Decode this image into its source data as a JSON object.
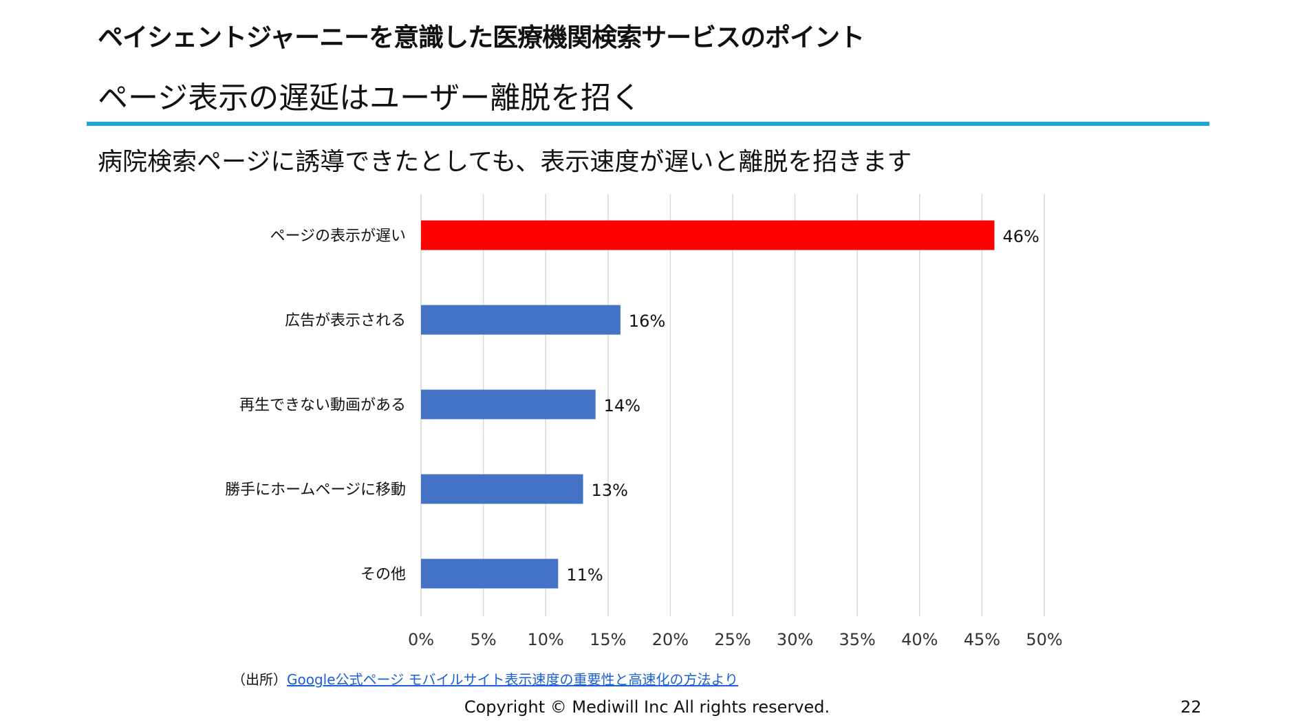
{
  "header": {
    "title": "ペイシェントジャーニーを意識した医療機関検索サービスのポイント",
    "subtitle": "ページ表示の遅延はユーザー離脱を招く"
  },
  "lead": "病院検索ページに誘導できたとしても、表示速度が遅いと離脱を招きます",
  "colors": {
    "accent_rule": "#1aa7e0",
    "highlight_bar": "#ff0000",
    "bar": "#4472c4"
  },
  "chart_data": {
    "type": "bar",
    "orientation": "horizontal",
    "categories": [
      "ページの表示が遅い",
      "広告が表示される",
      "再生できない動画がある",
      "勝手にホームページに移動",
      "その他"
    ],
    "values": [
      46,
      16,
      14,
      13,
      11
    ],
    "data_labels": [
      "46%",
      "16%",
      "14%",
      "13%",
      "11%"
    ],
    "bar_colors": [
      "#ff0000",
      "#4472c4",
      "#4472c4",
      "#4472c4",
      "#4472c4"
    ],
    "xlim": [
      0,
      50
    ],
    "x_ticks": [
      "0%",
      "5%",
      "10%",
      "15%",
      "20%",
      "25%",
      "30%",
      "35%",
      "40%",
      "45%",
      "50%"
    ],
    "grid": "vertical"
  },
  "source": {
    "prefix": "（出所）",
    "link_text": "Google公式ページ モバイルサイト表示速度の重要性と高速化の方法より"
  },
  "footer": {
    "copyright": "Copyright © Mediwill Inc All rights reserved.",
    "page_number": "22"
  }
}
